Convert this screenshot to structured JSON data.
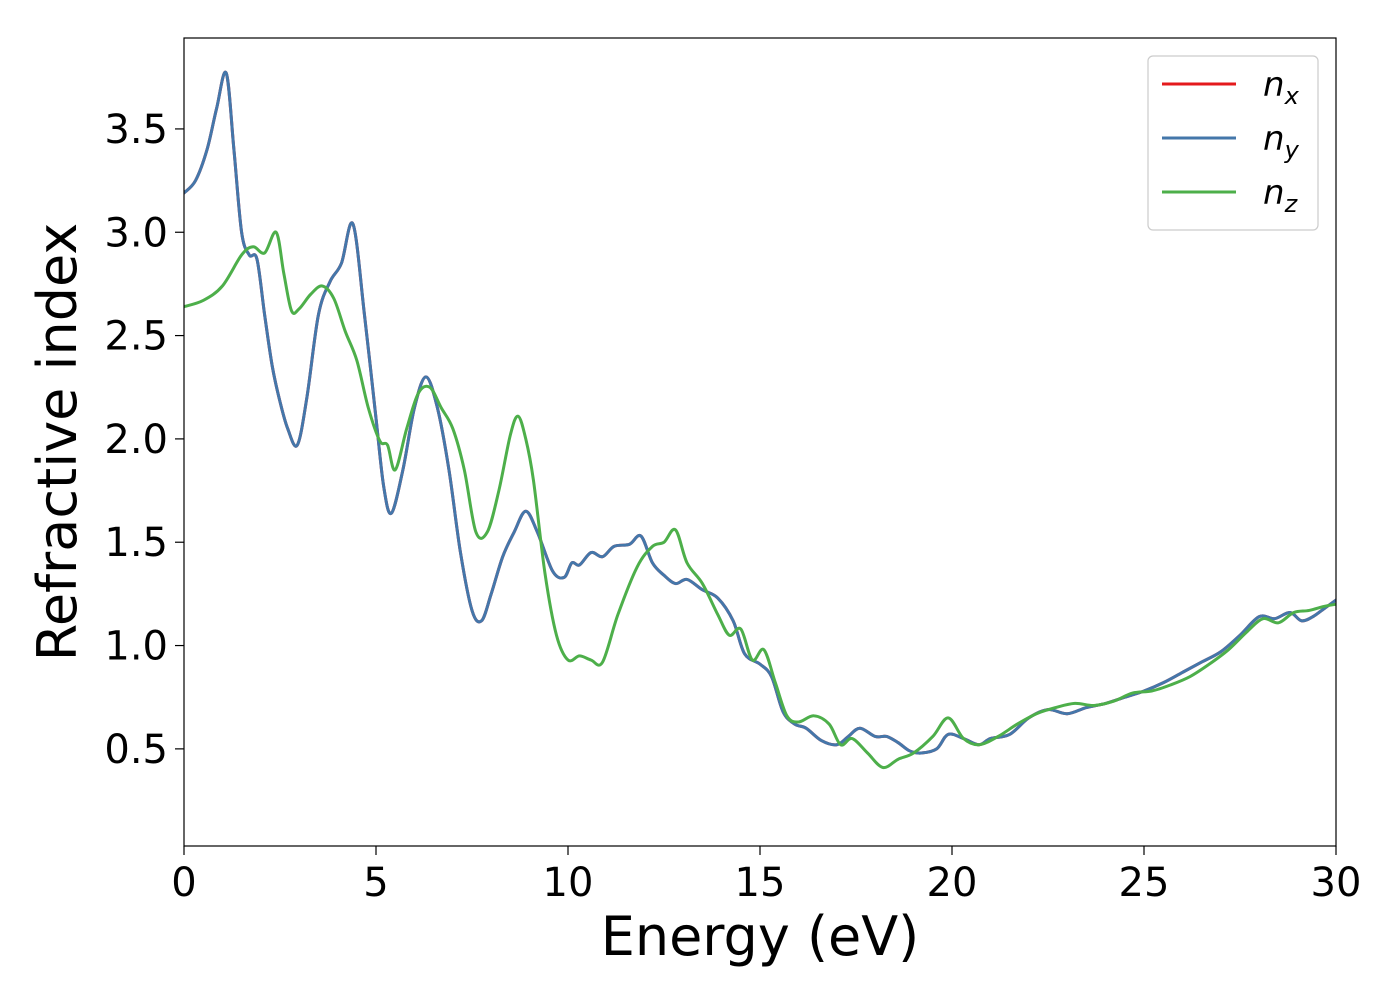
{
  "chart_data": {
    "type": "line",
    "xlabel": "Energy (eV)",
    "ylabel": "Refractive index",
    "xlim": [
      0,
      30
    ],
    "ylim": [
      0.03,
      3.94
    ],
    "xticks": [
      0,
      5,
      10,
      15,
      20,
      25,
      30
    ],
    "yticks": [
      0.5,
      1.0,
      1.5,
      2.0,
      2.5,
      3.0,
      3.5
    ],
    "xtick_labels": [
      "0",
      "5",
      "10",
      "15",
      "20",
      "25",
      "30"
    ],
    "ytick_labels": [
      "0.5",
      "1.0",
      "1.5",
      "2.0",
      "2.5",
      "3.0",
      "3.5"
    ],
    "grid": false,
    "legend_position": "top-right",
    "series": [
      {
        "name": "n",
        "subscript": "x",
        "color": "#e41a1c",
        "x": [
          0,
          0.3,
          0.6,
          0.85,
          1.1,
          1.3,
          1.5,
          1.7,
          1.9,
          2.1,
          2.3,
          2.5,
          2.7,
          2.95,
          3.2,
          3.5,
          3.8,
          4.1,
          4.4,
          4.7,
          5.0,
          5.2,
          5.4,
          5.7,
          6.0,
          6.3,
          6.6,
          6.9,
          7.2,
          7.5,
          7.75,
          8.0,
          8.3,
          8.6,
          8.9,
          9.2,
          9.6,
          9.9,
          10.1,
          10.3,
          10.6,
          10.9,
          11.2,
          11.6,
          11.9,
          12.2,
          12.5,
          12.8,
          13.1,
          13.5,
          13.9,
          14.3,
          14.6,
          15.0,
          15.3,
          15.6,
          15.9,
          16.2,
          16.6,
          17.0,
          17.3,
          17.6,
          18.0,
          18.3,
          18.6,
          18.9,
          19.2,
          19.6,
          19.9,
          20.3,
          20.7,
          21.0,
          21.5,
          22.0,
          22.5,
          23.0,
          23.5,
          24.0,
          24.5,
          25.0,
          25.5,
          26.0,
          26.5,
          27.0,
          27.5,
          28.0,
          28.4,
          28.8,
          29.1,
          29.4,
          29.7,
          30.0
        ],
        "y": [
          3.19,
          3.25,
          3.4,
          3.6,
          3.77,
          3.4,
          3.0,
          2.89,
          2.87,
          2.6,
          2.35,
          2.18,
          2.05,
          1.97,
          2.2,
          2.6,
          2.76,
          2.85,
          3.04,
          2.6,
          2.1,
          1.77,
          1.64,
          1.85,
          2.15,
          2.3,
          2.15,
          1.85,
          1.45,
          1.17,
          1.12,
          1.25,
          1.43,
          1.55,
          1.65,
          1.55,
          1.36,
          1.33,
          1.4,
          1.39,
          1.45,
          1.43,
          1.48,
          1.49,
          1.53,
          1.4,
          1.34,
          1.3,
          1.32,
          1.27,
          1.23,
          1.12,
          0.96,
          0.91,
          0.85,
          0.68,
          0.62,
          0.6,
          0.54,
          0.52,
          0.56,
          0.6,
          0.56,
          0.56,
          0.53,
          0.49,
          0.48,
          0.5,
          0.57,
          0.55,
          0.52,
          0.55,
          0.57,
          0.65,
          0.69,
          0.67,
          0.7,
          0.72,
          0.75,
          0.78,
          0.82,
          0.87,
          0.92,
          0.97,
          1.05,
          1.14,
          1.13,
          1.16,
          1.12,
          1.14,
          1.18,
          1.22
        ]
      },
      {
        "name": "n",
        "subscript": "y",
        "color": "#4477aa",
        "x": [
          0,
          0.3,
          0.6,
          0.85,
          1.1,
          1.3,
          1.5,
          1.7,
          1.9,
          2.1,
          2.3,
          2.5,
          2.7,
          2.95,
          3.2,
          3.5,
          3.8,
          4.1,
          4.4,
          4.7,
          5.0,
          5.2,
          5.4,
          5.7,
          6.0,
          6.3,
          6.6,
          6.9,
          7.2,
          7.5,
          7.75,
          8.0,
          8.3,
          8.6,
          8.9,
          9.2,
          9.6,
          9.9,
          10.1,
          10.3,
          10.6,
          10.9,
          11.2,
          11.6,
          11.9,
          12.2,
          12.5,
          12.8,
          13.1,
          13.5,
          13.9,
          14.3,
          14.6,
          15.0,
          15.3,
          15.6,
          15.9,
          16.2,
          16.6,
          17.0,
          17.3,
          17.6,
          18.0,
          18.3,
          18.6,
          18.9,
          19.2,
          19.6,
          19.9,
          20.3,
          20.7,
          21.0,
          21.5,
          22.0,
          22.5,
          23.0,
          23.5,
          24.0,
          24.5,
          25.0,
          25.5,
          26.0,
          26.5,
          27.0,
          27.5,
          28.0,
          28.4,
          28.8,
          29.1,
          29.4,
          29.7,
          30.0
        ],
        "y": [
          3.19,
          3.25,
          3.4,
          3.6,
          3.77,
          3.4,
          3.0,
          2.89,
          2.87,
          2.6,
          2.35,
          2.18,
          2.05,
          1.97,
          2.2,
          2.6,
          2.76,
          2.85,
          3.04,
          2.6,
          2.1,
          1.77,
          1.64,
          1.85,
          2.15,
          2.3,
          2.15,
          1.85,
          1.45,
          1.17,
          1.12,
          1.25,
          1.43,
          1.55,
          1.65,
          1.55,
          1.36,
          1.33,
          1.4,
          1.39,
          1.45,
          1.43,
          1.48,
          1.49,
          1.53,
          1.4,
          1.34,
          1.3,
          1.32,
          1.27,
          1.23,
          1.12,
          0.96,
          0.91,
          0.85,
          0.68,
          0.62,
          0.6,
          0.54,
          0.52,
          0.56,
          0.6,
          0.56,
          0.56,
          0.53,
          0.49,
          0.48,
          0.5,
          0.57,
          0.55,
          0.52,
          0.55,
          0.57,
          0.65,
          0.69,
          0.67,
          0.7,
          0.72,
          0.75,
          0.78,
          0.82,
          0.87,
          0.92,
          0.97,
          1.05,
          1.14,
          1.13,
          1.16,
          1.12,
          1.14,
          1.18,
          1.22
        ]
      },
      {
        "name": "n",
        "subscript": "z",
        "color": "#4daf4a",
        "x": [
          0,
          0.5,
          1.0,
          1.5,
          1.8,
          2.1,
          2.4,
          2.6,
          2.8,
          3.0,
          3.3,
          3.6,
          3.9,
          4.2,
          4.5,
          4.8,
          5.1,
          5.3,
          5.5,
          5.8,
          6.1,
          6.4,
          6.7,
          7.0,
          7.3,
          7.6,
          7.9,
          8.2,
          8.5,
          8.7,
          8.9,
          9.1,
          9.4,
          9.7,
          10.0,
          10.3,
          10.6,
          10.9,
          11.3,
          11.8,
          12.2,
          12.5,
          12.8,
          13.1,
          13.5,
          13.9,
          14.2,
          14.5,
          14.8,
          15.1,
          15.4,
          15.7,
          16.0,
          16.4,
          16.8,
          17.1,
          17.4,
          17.8,
          18.2,
          18.6,
          19.0,
          19.5,
          19.9,
          20.3,
          20.7,
          21.2,
          21.7,
          22.2,
          22.7,
          23.2,
          23.7,
          24.2,
          24.7,
          25.2,
          25.7,
          26.2,
          26.7,
          27.2,
          27.7,
          28.1,
          28.5,
          28.9,
          29.3,
          29.7,
          30.0
        ],
        "y": [
          2.64,
          2.67,
          2.74,
          2.89,
          2.93,
          2.9,
          3.0,
          2.8,
          2.62,
          2.63,
          2.7,
          2.74,
          2.68,
          2.52,
          2.38,
          2.15,
          1.99,
          1.97,
          1.85,
          2.05,
          2.22,
          2.25,
          2.15,
          2.05,
          1.85,
          1.55,
          1.55,
          1.75,
          2.02,
          2.11,
          2.0,
          1.8,
          1.35,
          1.05,
          0.93,
          0.95,
          0.93,
          0.92,
          1.15,
          1.38,
          1.48,
          1.5,
          1.56,
          1.4,
          1.3,
          1.15,
          1.05,
          1.08,
          0.93,
          0.98,
          0.82,
          0.66,
          0.63,
          0.66,
          0.62,
          0.52,
          0.55,
          0.48,
          0.41,
          0.45,
          0.48,
          0.56,
          0.65,
          0.55,
          0.52,
          0.56,
          0.62,
          0.67,
          0.7,
          0.72,
          0.71,
          0.73,
          0.77,
          0.78,
          0.81,
          0.85,
          0.91,
          0.98,
          1.07,
          1.13,
          1.11,
          1.16,
          1.17,
          1.19,
          1.2
        ]
      }
    ],
    "colors": {
      "axes": "#000000",
      "background": "#ffffff"
    }
  }
}
